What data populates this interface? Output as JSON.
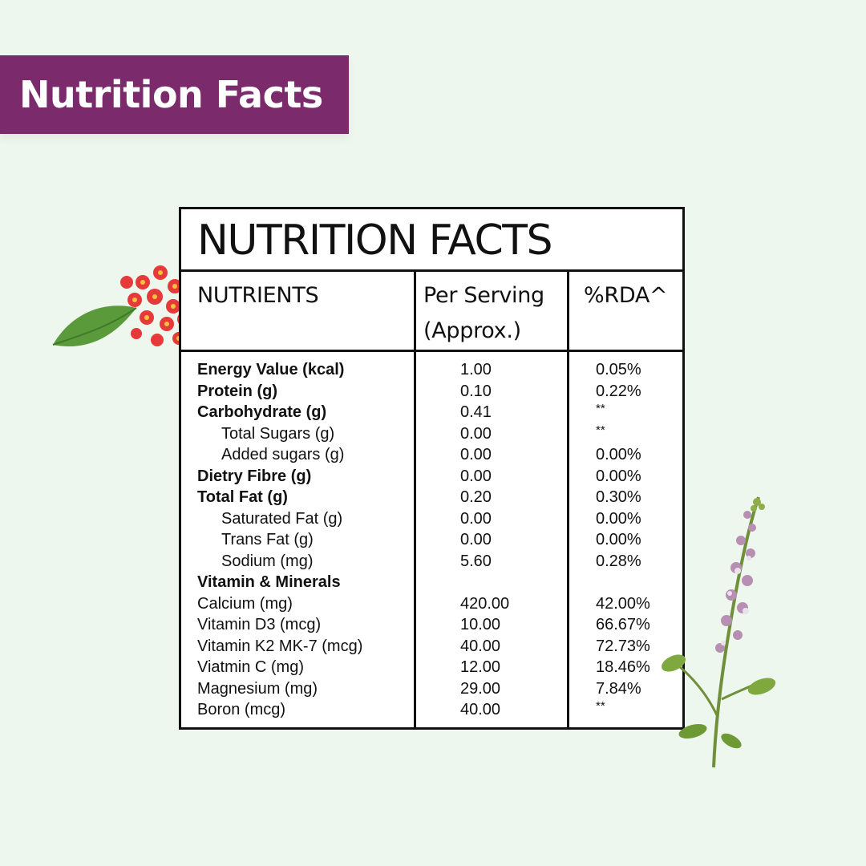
{
  "banner": {
    "title": "Nutrition Facts"
  },
  "table": {
    "title": "NUTRITION FACTS",
    "headers": {
      "nutrients": "NUTRIENTS",
      "per_serving_line1": "Per Serving",
      "per_serving_line2": "(Approx.)",
      "rda": "%RDA^"
    },
    "rows": [
      {
        "name": "Energy Value (kcal)",
        "value": "1.00",
        "rda": "0.05%",
        "bold": true,
        "indent": false
      },
      {
        "name": "Protein (g)",
        "value": "0.10",
        "rda": "0.22%",
        "bold": true,
        "indent": false
      },
      {
        "name": "Carbohydrate (g)",
        "value": "0.41",
        "rda": "**",
        "bold": true,
        "indent": false
      },
      {
        "name": "Total Sugars (g)",
        "value": "0.00",
        "rda": "**",
        "bold": false,
        "indent": true
      },
      {
        "name": "Added sugars (g)",
        "value": "0.00",
        "rda": "0.00%",
        "bold": false,
        "indent": true
      },
      {
        "name": "Dietry Fibre (g)",
        "value": "0.00",
        "rda": "0.00%",
        "bold": true,
        "indent": false
      },
      {
        "name": "Total Fat (g)",
        "value": "0.20",
        "rda": "0.30%",
        "bold": true,
        "indent": false
      },
      {
        "name": "Saturated Fat (g)",
        "value": "0.00",
        "rda": "0.00%",
        "bold": false,
        "indent": true
      },
      {
        "name": "Trans Fat (g)",
        "value": "0.00",
        "rda": "0.00%",
        "bold": false,
        "indent": true
      },
      {
        "name": "Sodium (mg)",
        "value": "5.60",
        "rda": "0.28%",
        "bold": false,
        "indent": true
      },
      {
        "name": "Vitamin & Minerals",
        "value": "",
        "rda": "",
        "bold": true,
        "indent": false
      },
      {
        "name": "Calcium (mg)",
        "value": "420.00",
        "rda": "42.00%",
        "bold": false,
        "indent": false
      },
      {
        "name": "Vitamin D3 (mcg)",
        "value": "10.00",
        "rda": "66.67%",
        "bold": false,
        "indent": false
      },
      {
        "name": "Vitamin K2 MK-7 (mcg)",
        "value": "40.00",
        "rda": "72.73%",
        "bold": false,
        "indent": false
      },
      {
        "name": "Viatmin C (mg)",
        "value": "12.00",
        "rda": "18.46%",
        "bold": false,
        "indent": false
      },
      {
        "name": "Magnesium (mg)",
        "value": "29.00",
        "rda": "7.84%",
        "bold": false,
        "indent": false
      },
      {
        "name": "Boron (mcg)",
        "value": "40.00",
        "rda": "**",
        "bold": false,
        "indent": false
      }
    ]
  },
  "colors": {
    "banner": "#7b2a6b",
    "background": "#eef7ee",
    "border": "#111111"
  },
  "decorations": [
    "red-flower-icon",
    "basil-sprig-icon"
  ]
}
